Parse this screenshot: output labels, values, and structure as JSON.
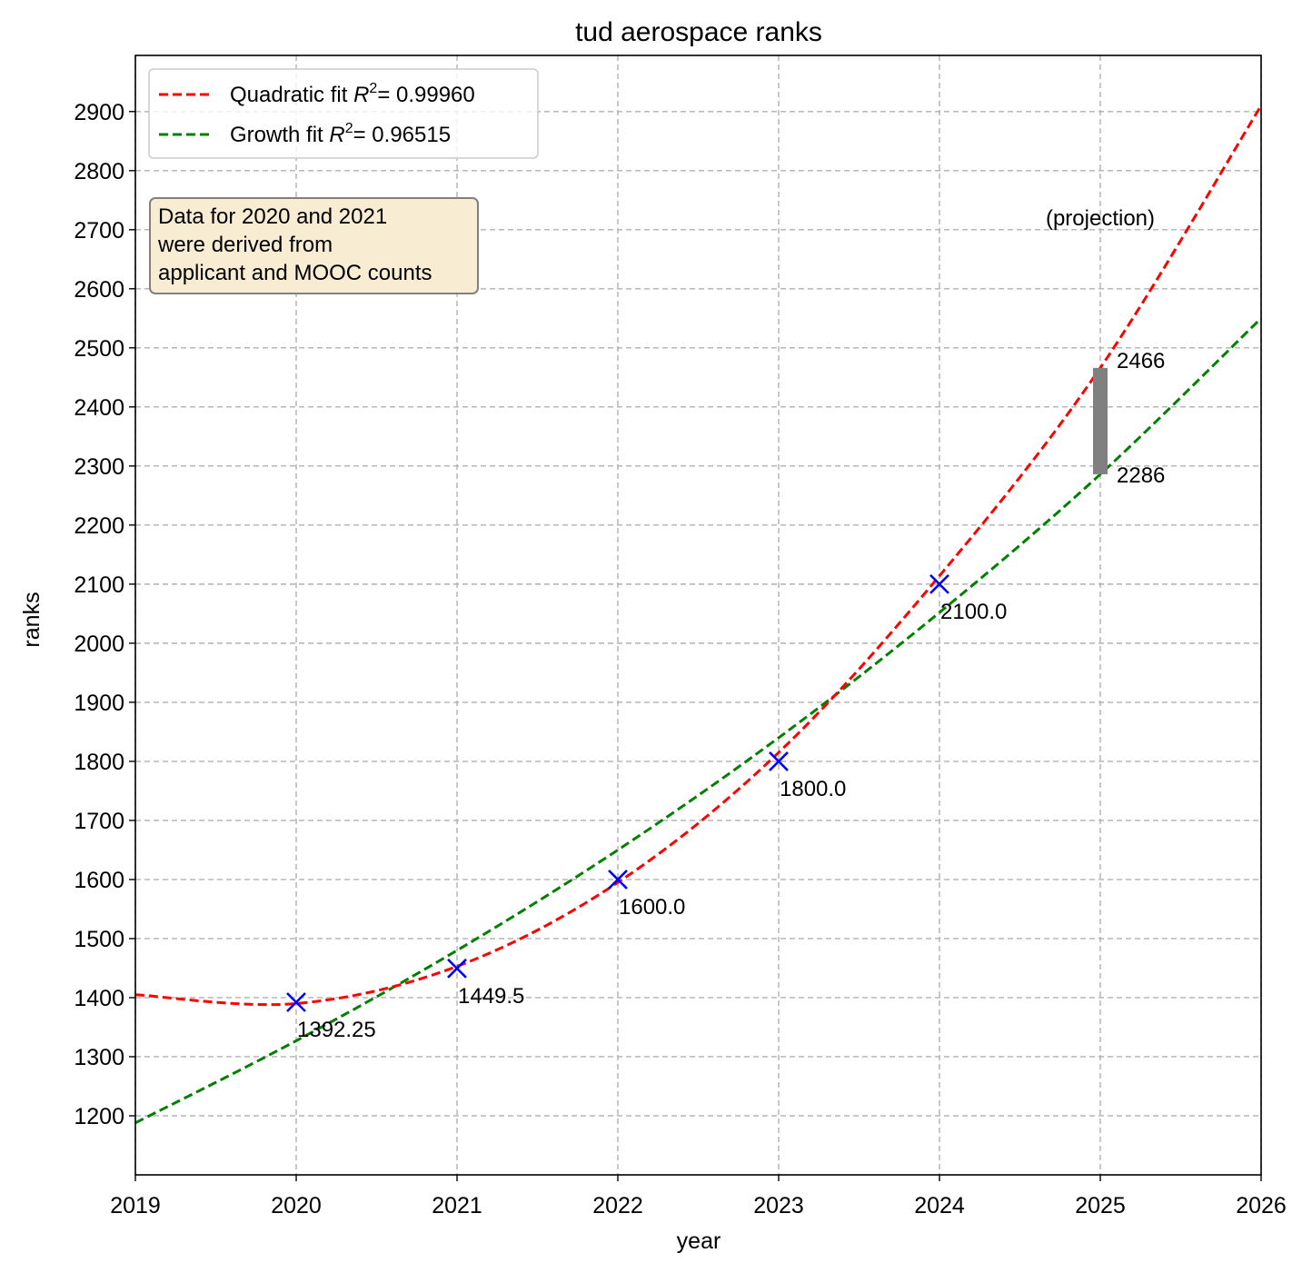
{
  "chart_data": {
    "type": "line",
    "title": "tud aerospace ranks",
    "xlabel": "year",
    "ylabel": "ranks",
    "xlim": [
      2019,
      2026
    ],
    "ylim": [
      1100,
      2995
    ],
    "grid": true,
    "legend_position": "top-left",
    "x_ticks": [
      "2019",
      "2020",
      "2021",
      "2022",
      "2023",
      "2024",
      "2025",
      "2026"
    ],
    "y_ticks": [
      "1200",
      "1300",
      "1400",
      "1500",
      "1600",
      "1700",
      "1800",
      "1900",
      "2000",
      "2100",
      "2200",
      "2300",
      "2400",
      "2500",
      "2600",
      "2700",
      "2800",
      "2900"
    ],
    "data_points": {
      "name": "ranks",
      "color": "#0000ff",
      "marker": "x",
      "x": [
        2020,
        2021,
        2022,
        2023,
        2024
      ],
      "y": [
        1392.25,
        1449.5,
        1600.0,
        1800.0,
        2100.0
      ],
      "labels": [
        "1392.25",
        "1449.5",
        "1600.0",
        "1800.0",
        "2100.0"
      ]
    },
    "series": [
      {
        "name": "Quadratic fit",
        "r2_label": "R",
        "r2_sup": "2",
        "r2_value": "= 0.99960",
        "color": "#ff0000",
        "style": "dashed",
        "model": "quadratic",
        "x": [
          2019,
          2020,
          2021,
          2022,
          2023,
          2024,
          2025,
          2026
        ],
        "y": [
          1405,
          1390,
          1453,
          1595,
          1815,
          2114,
          2466,
          2910
        ]
      },
      {
        "name": "Growth fit",
        "r2_label": "R",
        "r2_sup": "2",
        "r2_value": "= 0.96515",
        "color": "#008000",
        "style": "dashed",
        "model": "exponential",
        "x": [
          2019,
          2020,
          2021,
          2022,
          2023,
          2024,
          2025,
          2026
        ],
        "y": [
          1188,
          1327,
          1480,
          1650,
          1840,
          2052,
          2286,
          2550
        ]
      }
    ],
    "projection": {
      "x": 2025,
      "low": 2286,
      "high": 2466,
      "low_label": "2286",
      "high_label": "2466",
      "caption": "(projection)",
      "caption_y": 2720,
      "color": "#808080"
    },
    "note": {
      "lines": [
        "Data for 2020 and 2021",
        "were derived from",
        "applicant and MOOC counts"
      ],
      "background": "#f8ecd3",
      "border": "#808080"
    }
  }
}
